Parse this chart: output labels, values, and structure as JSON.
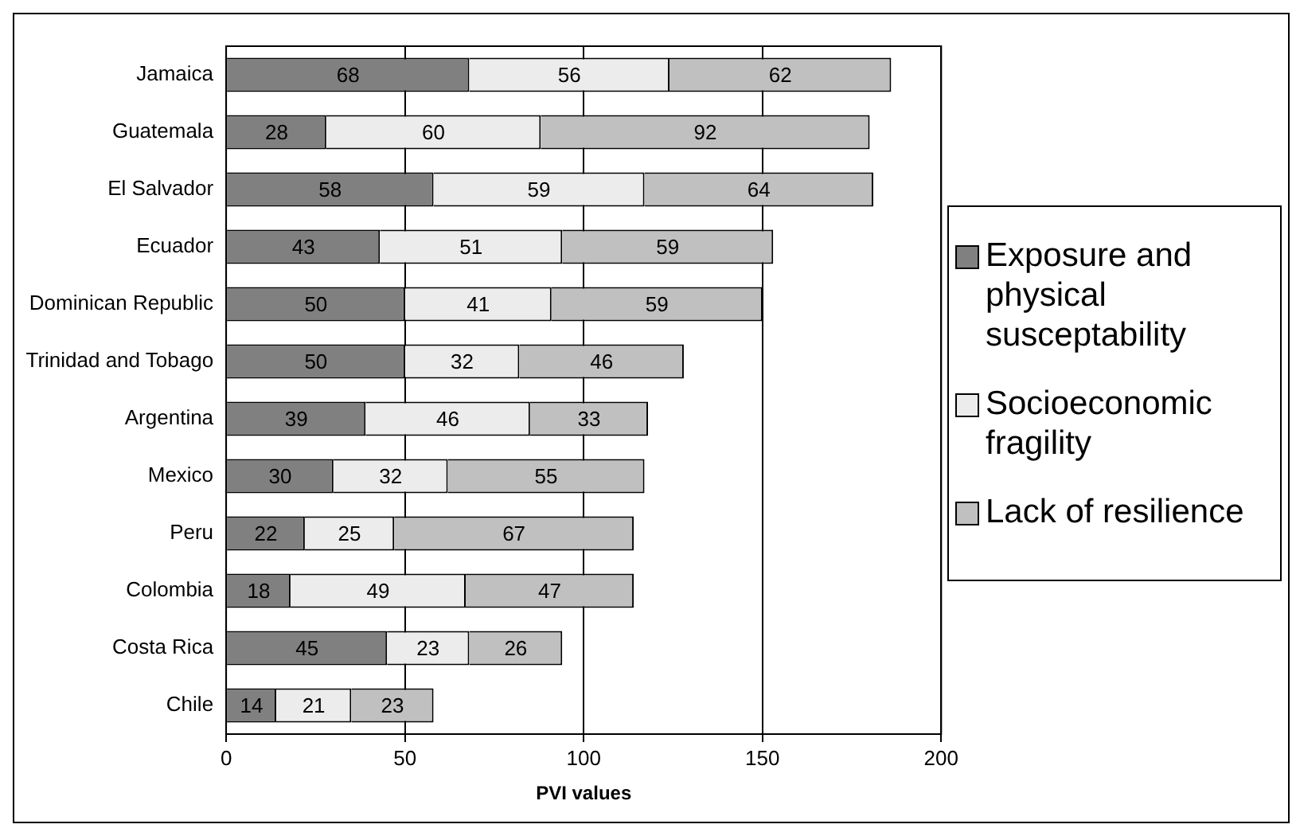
{
  "chart_data": {
    "type": "bar",
    "orientation": "horizontal",
    "stacked": true,
    "xlabel": "PVI values",
    "categories": [
      "Jamaica",
      "Guatemala",
      "El Salvador",
      "Ecuador",
      "Dominican Republic",
      "Trinidad and Tobago",
      "Argentina",
      "Mexico",
      "Peru",
      "Colombia",
      "Costa Rica",
      "Chile"
    ],
    "series": [
      {
        "name": "Exposure and physical susceptability",
        "color": "#808080",
        "values": [
          68,
          28,
          58,
          43,
          50,
          50,
          39,
          30,
          22,
          18,
          45,
          14
        ]
      },
      {
        "name": "Socioeconomic fragility",
        "color": "#ececec",
        "values": [
          56,
          60,
          59,
          51,
          41,
          32,
          46,
          32,
          25,
          49,
          23,
          21
        ]
      },
      {
        "name": "Lack of resilience",
        "color": "#c0c0c0",
        "values": [
          62,
          92,
          64,
          59,
          59,
          46,
          33,
          55,
          67,
          47,
          26,
          23
        ]
      }
    ],
    "xlim": [
      0,
      200
    ],
    "xticks": [
      0,
      50,
      100,
      150,
      200
    ],
    "grid": "x",
    "legend": "right",
    "data_labels": true
  }
}
